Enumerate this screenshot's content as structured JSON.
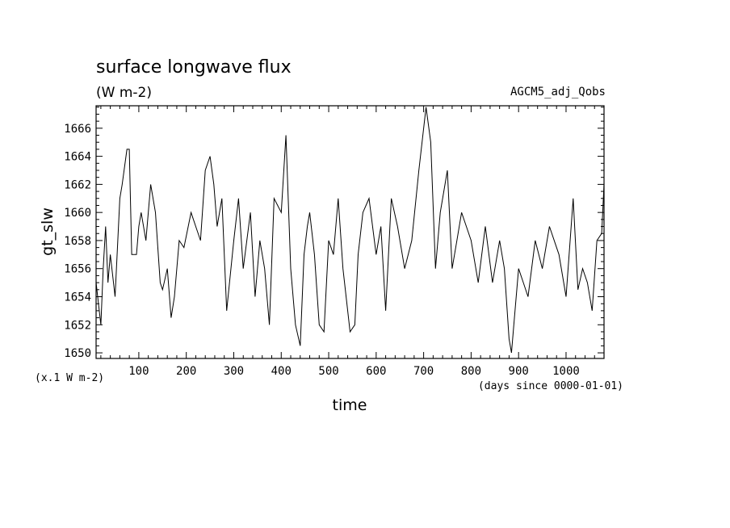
{
  "chart_data": {
    "type": "line",
    "title": "surface longwave flux",
    "subtitle": "(W m-2)",
    "run_label": "AGCM5_adj_Qobs",
    "ylabel": "gt_slw",
    "xlabel": "time",
    "y_unit_note": "(x.1 W m-2)",
    "x_unit_note": "(days since 0000-01-01)",
    "xlim": [
      10,
      1080
    ],
    "ylim": [
      1649.6,
      1667.6
    ],
    "x_ticks": [
      100,
      200,
      300,
      400,
      500,
      600,
      700,
      800,
      900,
      1000
    ],
    "y_ticks": [
      1650,
      1652,
      1654,
      1656,
      1658,
      1660,
      1662,
      1664,
      1666
    ],
    "grid": false,
    "series": [
      {
        "x": [
          10,
          20,
          25,
          30,
          35,
          40,
          50,
          60,
          65,
          75,
          80,
          85,
          95,
          100,
          105,
          115,
          125,
          135,
          145,
          150,
          160,
          168,
          175,
          185,
          195,
          210,
          220,
          230,
          240,
          250,
          258,
          265,
          275,
          285,
          300,
          310,
          320,
          335,
          345,
          355,
          365,
          375,
          385,
          400,
          410,
          420,
          430,
          440,
          448,
          455,
          460,
          470,
          480,
          490,
          500,
          510,
          520,
          530,
          545,
          555,
          562,
          572,
          585,
          600,
          610,
          620,
          632,
          645,
          660,
          675,
          690,
          705,
          715,
          725,
          735,
          750,
          760,
          770,
          780,
          790,
          800,
          815,
          830,
          845,
          860,
          870,
          880,
          885,
          890,
          900,
          910,
          920,
          935,
          950,
          965,
          985,
          1000,
          1015,
          1025,
          1035,
          1045,
          1055,
          1065,
          1075,
          1080
        ],
        "y": [
          1655,
          1652,
          1656,
          1659,
          1655,
          1657,
          1654,
          1661,
          1662,
          1664.5,
          1664.5,
          1657,
          1657,
          1659,
          1660,
          1658,
          1662,
          1660,
          1655,
          1654.5,
          1656,
          1652.5,
          1654,
          1658,
          1657.5,
          1660,
          1659,
          1658,
          1663,
          1664,
          1662,
          1659,
          1661,
          1653,
          1658,
          1661,
          1656,
          1660,
          1654,
          1658,
          1656,
          1652,
          1661,
          1660,
          1665.5,
          1656,
          1652,
          1650.5,
          1657,
          1659,
          1660,
          1657,
          1652,
          1651.5,
          1658,
          1657,
          1661,
          1656,
          1651.5,
          1652,
          1657,
          1660,
          1661,
          1657,
          1659,
          1653,
          1661,
          1659,
          1656,
          1658,
          1663,
          1667.5,
          1665,
          1656,
          1660,
          1663,
          1656,
          1658,
          1660,
          1659,
          1658,
          1655,
          1659,
          1655,
          1658,
          1656,
          1651,
          1650,
          1652,
          1656,
          1655,
          1654,
          1658,
          1656,
          1659,
          1657,
          1654,
          1661,
          1654.5,
          1656,
          1655,
          1653,
          1658,
          1658.5,
          1662
        ]
      }
    ]
  }
}
